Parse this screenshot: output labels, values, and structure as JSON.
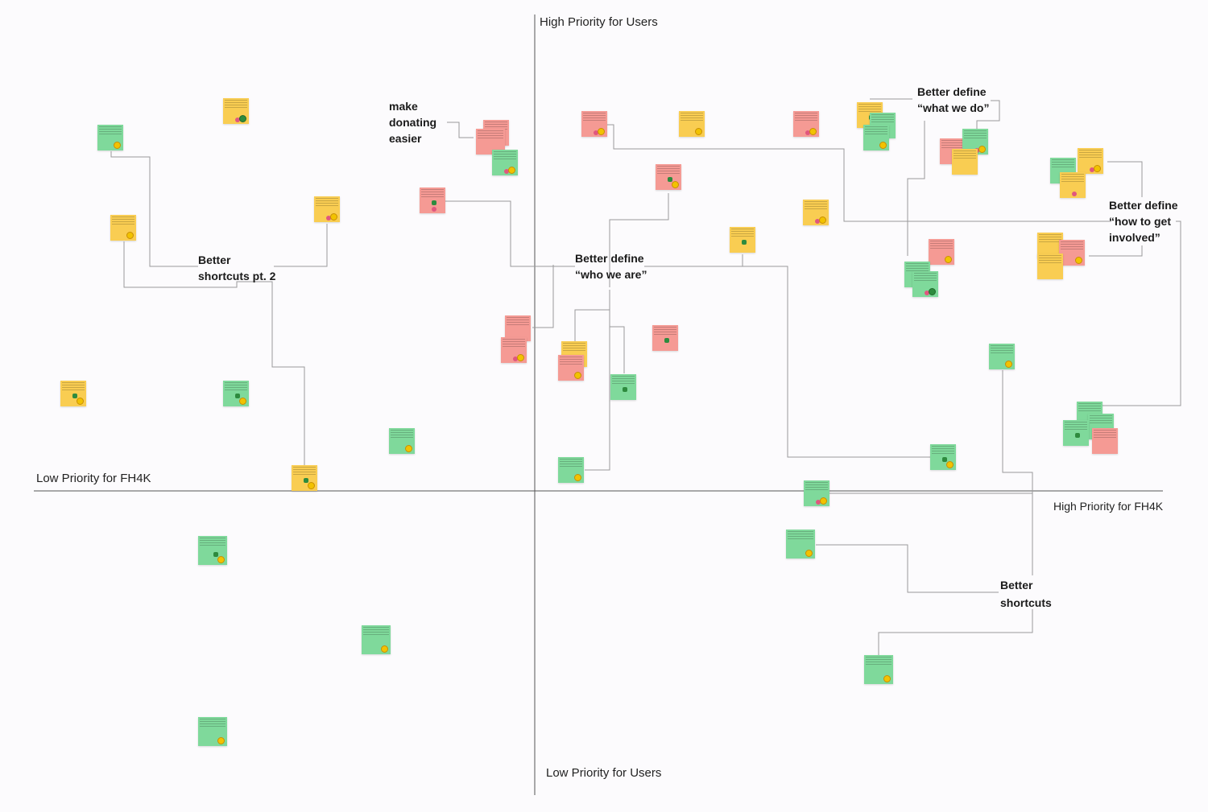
{
  "axes": {
    "top": "High Priority for Users",
    "bottom": "Low Priority for Users",
    "left": "Low Priority for FH4K",
    "right": "High Priority for FH4K"
  },
  "clusters": {
    "make_donating_easier": [
      "make",
      "donating",
      "easier"
    ],
    "shortcuts_pt2": [
      "Better",
      "shortcuts pt. 2"
    ],
    "who_we_are": [
      "Better define",
      "“who we are”"
    ],
    "what_we_do": [
      "Better define",
      "“what we do”"
    ],
    "how_to_get_involved": [
      "Better define",
      "“how to get",
      "involved”"
    ],
    "shortcuts": [
      "Better",
      "shortcuts"
    ]
  },
  "colors": {
    "green": "#7fd99b",
    "yellow": "#f9cd52",
    "red": "#f59a94",
    "axis": "#555555",
    "connector": "#9a9a9a"
  }
}
